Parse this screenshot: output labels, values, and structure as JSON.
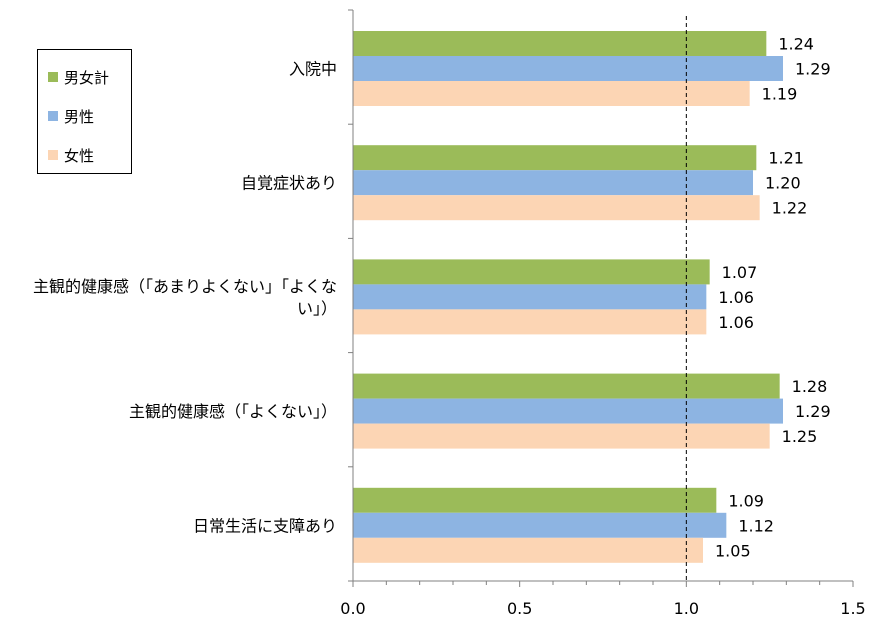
{
  "chart_data": {
    "type": "bar",
    "orientation": "horizontal",
    "categories": [
      "入院中",
      "自覚症状あり",
      "主観的健康感（「あまりよくない」「よくない」）",
      "主観的健康感（「よくない」）",
      "日常生活に支障あり"
    ],
    "category_lines": [
      [
        "入院中"
      ],
      [
        "自覚症状あり"
      ],
      [
        "主観的健康感（「あまりよくない」「よくな",
        "い」）"
      ],
      [
        "主観的健康感（「よくない」）"
      ],
      [
        "日常生活に支障あり"
      ]
    ],
    "series": [
      {
        "name": "男女計",
        "color": "#9BBB59",
        "values": [
          1.24,
          1.21,
          1.07,
          1.28,
          1.09
        ],
        "labels": [
          "1.24",
          "1.21",
          "1.07",
          "1.28",
          "1.09"
        ]
      },
      {
        "name": "男性",
        "color": "#8DB4E2",
        "values": [
          1.29,
          1.2,
          1.06,
          1.29,
          1.12
        ],
        "labels": [
          "1.29",
          "1.20",
          "1.06",
          "1.29",
          "1.12"
        ]
      },
      {
        "name": "女性",
        "color": "#FCD5B4",
        "values": [
          1.19,
          1.22,
          1.06,
          1.25,
          1.05
        ],
        "labels": [
          "1.19",
          "1.22",
          "1.06",
          "1.25",
          "1.05"
        ]
      }
    ],
    "xlim": [
      0,
      1.5
    ],
    "x_ticks": [
      "0.0",
      "0.5",
      "1.0",
      "1.5"
    ],
    "x_tick_values": [
      0,
      0.5,
      1.0,
      1.5
    ],
    "reference_line": 1.0,
    "grid": false,
    "legend_position": "top-left",
    "title": "",
    "xlabel": "",
    "ylabel": ""
  }
}
